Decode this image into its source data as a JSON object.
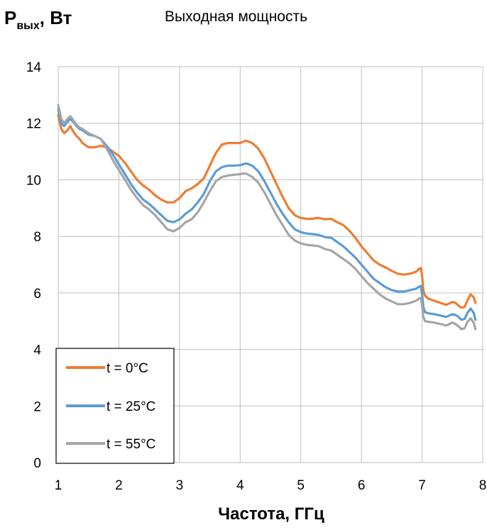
{
  "chart_data": {
    "type": "line",
    "title": "Выходная мощность",
    "ylabel": {
      "main": "P",
      "sub": "вых",
      "unit": ", Вт"
    },
    "xlabel": "Частота, ГГц",
    "xlim": [
      1,
      8
    ],
    "ylim": [
      0,
      14
    ],
    "xticks": [
      "1",
      "2",
      "3",
      "4",
      "5",
      "6",
      "7",
      "8"
    ],
    "yticks": [
      "0",
      "2",
      "4",
      "6",
      "8",
      "10",
      "12",
      "14"
    ],
    "grid": true,
    "legend_position": "bottom-left",
    "series": [
      {
        "name": "t = 0°C",
        "color": "#ED7D31",
        "points": [
          [
            1.0,
            12.3
          ],
          [
            1.05,
            11.8
          ],
          [
            1.1,
            11.65
          ],
          [
            1.15,
            11.75
          ],
          [
            1.2,
            11.9
          ],
          [
            1.25,
            11.7
          ],
          [
            1.3,
            11.55
          ],
          [
            1.35,
            11.45
          ],
          [
            1.4,
            11.3
          ],
          [
            1.5,
            11.15
          ],
          [
            1.6,
            11.15
          ],
          [
            1.7,
            11.2
          ],
          [
            1.8,
            11.15
          ],
          [
            1.9,
            11.0
          ],
          [
            2.0,
            10.85
          ],
          [
            2.1,
            10.6
          ],
          [
            2.2,
            10.3
          ],
          [
            2.3,
            10.0
          ],
          [
            2.4,
            9.8
          ],
          [
            2.5,
            9.65
          ],
          [
            2.6,
            9.45
          ],
          [
            2.7,
            9.3
          ],
          [
            2.8,
            9.2
          ],
          [
            2.9,
            9.2
          ],
          [
            3.0,
            9.35
          ],
          [
            3.1,
            9.6
          ],
          [
            3.2,
            9.7
          ],
          [
            3.3,
            9.85
          ],
          [
            3.4,
            10.05
          ],
          [
            3.5,
            10.5
          ],
          [
            3.6,
            10.95
          ],
          [
            3.7,
            11.25
          ],
          [
            3.8,
            11.3
          ],
          [
            3.9,
            11.3
          ],
          [
            4.0,
            11.3
          ],
          [
            4.05,
            11.35
          ],
          [
            4.1,
            11.38
          ],
          [
            4.2,
            11.3
          ],
          [
            4.3,
            11.1
          ],
          [
            4.4,
            10.75
          ],
          [
            4.5,
            10.3
          ],
          [
            4.6,
            9.85
          ],
          [
            4.7,
            9.4
          ],
          [
            4.8,
            9.0
          ],
          [
            4.9,
            8.75
          ],
          [
            5.0,
            8.65
          ],
          [
            5.1,
            8.62
          ],
          [
            5.2,
            8.62
          ],
          [
            5.25,
            8.65
          ],
          [
            5.3,
            8.65
          ],
          [
            5.4,
            8.6
          ],
          [
            5.5,
            8.62
          ],
          [
            5.6,
            8.5
          ],
          [
            5.7,
            8.4
          ],
          [
            5.8,
            8.2
          ],
          [
            5.9,
            7.95
          ],
          [
            6.0,
            7.65
          ],
          [
            6.1,
            7.4
          ],
          [
            6.2,
            7.15
          ],
          [
            6.3,
            7.0
          ],
          [
            6.4,
            6.9
          ],
          [
            6.5,
            6.78
          ],
          [
            6.6,
            6.68
          ],
          [
            6.7,
            6.65
          ],
          [
            6.8,
            6.68
          ],
          [
            6.9,
            6.75
          ],
          [
            6.95,
            6.85
          ],
          [
            6.98,
            6.88
          ],
          [
            7.0,
            6.6
          ],
          [
            7.02,
            6.1
          ],
          [
            7.05,
            5.9
          ],
          [
            7.1,
            5.8
          ],
          [
            7.2,
            5.72
          ],
          [
            7.3,
            5.65
          ],
          [
            7.4,
            5.58
          ],
          [
            7.5,
            5.68
          ],
          [
            7.55,
            5.65
          ],
          [
            7.6,
            5.55
          ],
          [
            7.65,
            5.48
          ],
          [
            7.7,
            5.5
          ],
          [
            7.75,
            5.75
          ],
          [
            7.8,
            5.95
          ],
          [
            7.85,
            5.85
          ],
          [
            7.88,
            5.65
          ]
        ]
      },
      {
        "name": "t = 25°C",
        "color": "#5B9BD5",
        "points": [
          [
            1.0,
            12.5
          ],
          [
            1.05,
            12.0
          ],
          [
            1.1,
            11.9
          ],
          [
            1.15,
            12.05
          ],
          [
            1.2,
            12.15
          ],
          [
            1.25,
            12.05
          ],
          [
            1.3,
            11.9
          ],
          [
            1.35,
            11.8
          ],
          [
            1.4,
            11.75
          ],
          [
            1.5,
            11.6
          ],
          [
            1.6,
            11.55
          ],
          [
            1.7,
            11.45
          ],
          [
            1.8,
            11.2
          ],
          [
            1.9,
            10.9
          ],
          [
            2.0,
            10.55
          ],
          [
            2.1,
            10.2
          ],
          [
            2.2,
            9.85
          ],
          [
            2.3,
            9.55
          ],
          [
            2.4,
            9.3
          ],
          [
            2.5,
            9.15
          ],
          [
            2.6,
            8.95
          ],
          [
            2.7,
            8.75
          ],
          [
            2.8,
            8.55
          ],
          [
            2.9,
            8.5
          ],
          [
            3.0,
            8.6
          ],
          [
            3.1,
            8.8
          ],
          [
            3.2,
            8.95
          ],
          [
            3.3,
            9.2
          ],
          [
            3.4,
            9.5
          ],
          [
            3.5,
            9.95
          ],
          [
            3.6,
            10.3
          ],
          [
            3.7,
            10.45
          ],
          [
            3.8,
            10.5
          ],
          [
            3.9,
            10.5
          ],
          [
            4.0,
            10.52
          ],
          [
            4.05,
            10.55
          ],
          [
            4.1,
            10.58
          ],
          [
            4.2,
            10.5
          ],
          [
            4.3,
            10.3
          ],
          [
            4.4,
            9.95
          ],
          [
            4.5,
            9.55
          ],
          [
            4.6,
            9.15
          ],
          [
            4.7,
            8.8
          ],
          [
            4.8,
            8.5
          ],
          [
            4.9,
            8.25
          ],
          [
            5.0,
            8.15
          ],
          [
            5.1,
            8.1
          ],
          [
            5.2,
            8.08
          ],
          [
            5.3,
            8.05
          ],
          [
            5.4,
            7.97
          ],
          [
            5.5,
            7.95
          ],
          [
            5.6,
            7.8
          ],
          [
            5.7,
            7.65
          ],
          [
            5.8,
            7.45
          ],
          [
            5.9,
            7.25
          ],
          [
            6.0,
            7.0
          ],
          [
            6.1,
            6.75
          ],
          [
            6.2,
            6.5
          ],
          [
            6.3,
            6.35
          ],
          [
            6.4,
            6.2
          ],
          [
            6.5,
            6.1
          ],
          [
            6.6,
            6.05
          ],
          [
            6.7,
            6.05
          ],
          [
            6.8,
            6.1
          ],
          [
            6.9,
            6.15
          ],
          [
            6.95,
            6.22
          ],
          [
            6.98,
            6.25
          ],
          [
            7.0,
            5.95
          ],
          [
            7.02,
            5.5
          ],
          [
            7.05,
            5.32
          ],
          [
            7.1,
            5.28
          ],
          [
            7.2,
            5.25
          ],
          [
            7.3,
            5.2
          ],
          [
            7.4,
            5.15
          ],
          [
            7.5,
            5.25
          ],
          [
            7.55,
            5.22
          ],
          [
            7.6,
            5.15
          ],
          [
            7.65,
            5.05
          ],
          [
            7.7,
            5.08
          ],
          [
            7.75,
            5.3
          ],
          [
            7.8,
            5.45
          ],
          [
            7.85,
            5.3
          ],
          [
            7.88,
            5.05
          ]
        ]
      },
      {
        "name": "t = 55°C",
        "color": "#A5A5A5",
        "points": [
          [
            1.0,
            12.65
          ],
          [
            1.05,
            12.15
          ],
          [
            1.1,
            12.0
          ],
          [
            1.15,
            12.15
          ],
          [
            1.2,
            12.25
          ],
          [
            1.25,
            12.1
          ],
          [
            1.3,
            11.95
          ],
          [
            1.35,
            11.85
          ],
          [
            1.4,
            11.8
          ],
          [
            1.5,
            11.65
          ],
          [
            1.6,
            11.55
          ],
          [
            1.7,
            11.45
          ],
          [
            1.8,
            11.1
          ],
          [
            1.9,
            10.7
          ],
          [
            2.0,
            10.35
          ],
          [
            2.1,
            10.0
          ],
          [
            2.2,
            9.65
          ],
          [
            2.3,
            9.35
          ],
          [
            2.4,
            9.1
          ],
          [
            2.5,
            8.95
          ],
          [
            2.6,
            8.75
          ],
          [
            2.7,
            8.5
          ],
          [
            2.8,
            8.25
          ],
          [
            2.9,
            8.18
          ],
          [
            3.0,
            8.3
          ],
          [
            3.1,
            8.5
          ],
          [
            3.2,
            8.6
          ],
          [
            3.3,
            8.85
          ],
          [
            3.4,
            9.2
          ],
          [
            3.5,
            9.6
          ],
          [
            3.6,
            9.95
          ],
          [
            3.7,
            10.1
          ],
          [
            3.8,
            10.15
          ],
          [
            3.9,
            10.18
          ],
          [
            4.0,
            10.2
          ],
          [
            4.05,
            10.22
          ],
          [
            4.1,
            10.22
          ],
          [
            4.2,
            10.1
          ],
          [
            4.3,
            9.9
          ],
          [
            4.4,
            9.55
          ],
          [
            4.5,
            9.15
          ],
          [
            4.6,
            8.75
          ],
          [
            4.7,
            8.4
          ],
          [
            4.8,
            8.05
          ],
          [
            4.9,
            7.85
          ],
          [
            5.0,
            7.75
          ],
          [
            5.1,
            7.7
          ],
          [
            5.2,
            7.68
          ],
          [
            5.3,
            7.65
          ],
          [
            5.4,
            7.55
          ],
          [
            5.5,
            7.5
          ],
          [
            5.6,
            7.35
          ],
          [
            5.7,
            7.2
          ],
          [
            5.8,
            7.05
          ],
          [
            5.9,
            6.85
          ],
          [
            6.0,
            6.6
          ],
          [
            6.1,
            6.35
          ],
          [
            6.2,
            6.15
          ],
          [
            6.3,
            5.95
          ],
          [
            6.4,
            5.8
          ],
          [
            6.5,
            5.7
          ],
          [
            6.6,
            5.6
          ],
          [
            6.7,
            5.6
          ],
          [
            6.8,
            5.65
          ],
          [
            6.9,
            5.72
          ],
          [
            6.95,
            5.8
          ],
          [
            6.98,
            5.82
          ],
          [
            7.0,
            5.55
          ],
          [
            7.02,
            5.15
          ],
          [
            7.05,
            5.0
          ],
          [
            7.1,
            4.98
          ],
          [
            7.2,
            4.95
          ],
          [
            7.3,
            4.9
          ],
          [
            7.4,
            4.85
          ],
          [
            7.5,
            4.95
          ],
          [
            7.55,
            4.9
          ],
          [
            7.6,
            4.82
          ],
          [
            7.65,
            4.72
          ],
          [
            7.7,
            4.75
          ],
          [
            7.75,
            4.98
          ],
          [
            7.8,
            5.1
          ],
          [
            7.85,
            4.95
          ],
          [
            7.88,
            4.72
          ]
        ]
      }
    ]
  }
}
